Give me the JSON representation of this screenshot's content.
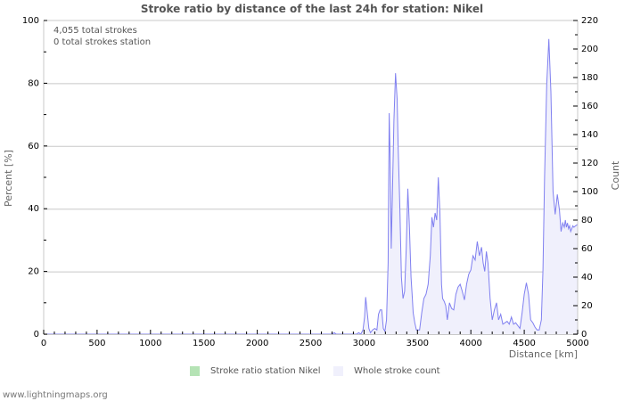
{
  "title": "Stroke ratio by distance of the last 24h for station: Nikel",
  "info": {
    "total_strokes": "4,055 total strokes",
    "total_strokes_station": "0 total strokes station"
  },
  "legend": {
    "ratio_label": "Stroke ratio station Nikel",
    "ratio_color": "#b5e3b5",
    "count_label": "Whole stroke count",
    "count_color": "#f0f0fc"
  },
  "footer": "www.lightningmaps.org",
  "colors": {
    "line": "#8080f0",
    "fill": "#f0f0fc",
    "grid": "#c8c8c8"
  },
  "chart_data": {
    "type": "area",
    "title": "Stroke ratio by distance of the last 24h for station: Nikel",
    "xlabel": "Distance   [km]",
    "ylabel": "Percent   [%]",
    "ylabel_right": "Count",
    "xlim": [
      0,
      5000
    ],
    "ylim": [
      0,
      100
    ],
    "ylim_right": [
      0,
      220
    ],
    "x_ticks": [
      0,
      500,
      1000,
      1500,
      2000,
      2500,
      3000,
      3500,
      4000,
      4500,
      5000
    ],
    "y_ticks": [
      0,
      20,
      40,
      60,
      80,
      100
    ],
    "y_ticks_right": [
      0,
      20,
      40,
      60,
      80,
      100,
      120,
      140,
      160,
      180,
      200,
      220
    ],
    "grid": true,
    "legend_position": "bottom",
    "series": [
      {
        "name": "Stroke ratio station Nikel",
        "axis": "left",
        "x": [
          0,
          5000
        ],
        "values": [
          0,
          0
        ]
      },
      {
        "name": "Whole stroke count",
        "axis": "right",
        "x": [
          0,
          2700,
          2720,
          2740,
          2930,
          2950,
          2970,
          2990,
          3005,
          3015,
          3030,
          3045,
          3060,
          3080,
          3100,
          3120,
          3135,
          3150,
          3165,
          3180,
          3195,
          3210,
          3225,
          3235,
          3245,
          3255,
          3265,
          3280,
          3295,
          3310,
          3320,
          3335,
          3350,
          3365,
          3380,
          3395,
          3410,
          3425,
          3440,
          3450,
          3460,
          3475,
          3490,
          3505,
          3520,
          3540,
          3560,
          3580,
          3600,
          3620,
          3635,
          3650,
          3665,
          3680,
          3695,
          3710,
          3725,
          3735,
          3750,
          3765,
          3780,
          3800,
          3820,
          3840,
          3860,
          3880,
          3900,
          3920,
          3940,
          3960,
          3980,
          4000,
          4020,
          4040,
          4060,
          4080,
          4100,
          4115,
          4130,
          4145,
          4160,
          4180,
          4200,
          4220,
          4240,
          4260,
          4280,
          4300,
          4320,
          4340,
          4360,
          4380,
          4400,
          4420,
          4440,
          4460,
          4480,
          4500,
          4520,
          4540,
          4560,
          4580,
          4600,
          4620,
          4640,
          4660,
          4675,
          4690,
          4710,
          4730,
          4750,
          4770,
          4790,
          4810,
          4830,
          4845,
          4860,
          4875,
          4885,
          4895,
          4905,
          4915,
          4925,
          4935,
          4945,
          4955,
          4965,
          4980,
          5000
        ],
        "values": [
          0,
          0,
          1,
          0,
          0,
          1,
          0,
          3,
          12,
          26,
          15,
          4,
          1,
          3,
          4,
          3,
          14,
          17,
          17,
          4,
          2,
          10,
          50,
          155,
          120,
          60,
          95,
          150,
          183,
          165,
          130,
          90,
          40,
          25,
          30,
          60,
          102,
          75,
          40,
          28,
          15,
          8,
          3,
          3,
          3,
          15,
          25,
          28,
          35,
          55,
          82,
          75,
          85,
          80,
          110,
          85,
          35,
          25,
          23,
          20,
          10,
          22,
          18,
          17,
          28,
          33,
          35,
          30,
          24,
          35,
          42,
          45,
          55,
          52,
          65,
          55,
          61,
          50,
          44,
          58,
          50,
          25,
          10,
          17,
          22,
          10,
          14,
          7,
          8,
          9,
          7,
          12,
          7,
          8,
          6,
          4,
          15,
          28,
          36,
          28,
          10,
          8,
          5,
          3,
          3,
          10,
          45,
          110,
          175,
          207,
          170,
          100,
          84,
          98,
          87,
          72,
          78,
          75,
          80,
          75,
          78,
          74,
          76,
          72,
          74,
          76,
          75,
          76,
          77
        ]
      }
    ]
  }
}
